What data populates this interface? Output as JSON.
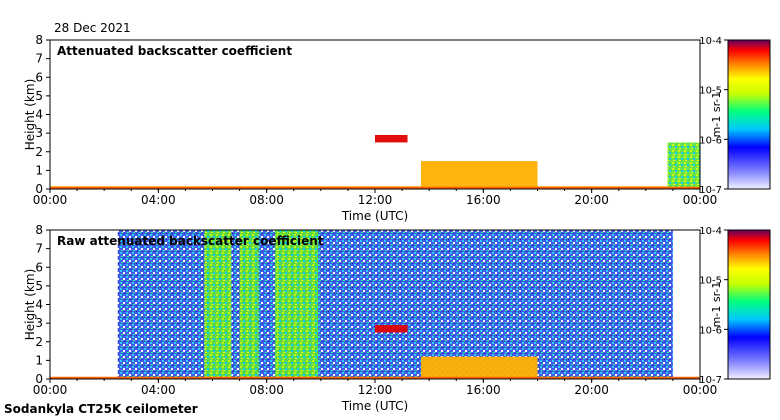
{
  "date": "28 Dec 2021",
  "footer": "Sodankyla CT25K ceilometer",
  "chart_data": [
    {
      "type": "heatmap",
      "title": "Attenuated backscatter coefficient",
      "xlabel": "Time (UTC)",
      "ylabel": "Height (km)",
      "x_ticks": [
        "00:00",
        "04:00",
        "08:00",
        "12:00",
        "16:00",
        "20:00",
        "00:00"
      ],
      "x_range_hours": [
        0,
        24
      ],
      "y_ticks": [
        0,
        1,
        2,
        3,
        4,
        5,
        6,
        7,
        8
      ],
      "ylim": [
        0,
        8
      ],
      "colorbar": {
        "scale": "log",
        "range": [
          1e-07,
          0.0001
        ],
        "ticks": [
          "10-7",
          "10-6",
          "10-5",
          "10-4"
        ],
        "unit": "m-1 sr-1"
      },
      "features": [
        {
          "name": "surface layer",
          "start_h": 0.0,
          "end_h": 24.0,
          "top_km": 0.15,
          "level": "high"
        },
        {
          "name": "cloud layer",
          "start_h": 12.0,
          "end_h": 13.2,
          "top_km": 2.9,
          "bottom_km": 2.5,
          "level": "very high"
        },
        {
          "name": "low cloud",
          "start_h": 13.7,
          "end_h": 18.0,
          "top_km": 1.5,
          "level": "high"
        },
        {
          "name": "fog layer",
          "start_h": 22.8,
          "end_h": 24.0,
          "top_km": 2.5,
          "level": "medium"
        }
      ]
    },
    {
      "type": "heatmap",
      "title": "Raw attenuated backscatter coefficient",
      "xlabel": "Time (UTC)",
      "ylabel": "Height (km)",
      "x_ticks": [
        "00:00",
        "04:00",
        "08:00",
        "12:00",
        "16:00",
        "20:00",
        "00:00"
      ],
      "x_range_hours": [
        0,
        24
      ],
      "y_ticks": [
        0,
        1,
        2,
        3,
        4,
        5,
        6,
        7,
        8
      ],
      "ylim": [
        0,
        8
      ],
      "colorbar": {
        "scale": "log",
        "range": [
          1e-07,
          0.0001
        ],
        "ticks": [
          "10-7",
          "10-6",
          "10-5",
          "10-4"
        ],
        "unit": "m-1 sr-1"
      },
      "features": [
        {
          "name": "noise background",
          "start_h": 2.5,
          "end_h": 23.0,
          "top_km": 8.0,
          "level": "low"
        },
        {
          "name": "enhanced noise band",
          "start_h": 5.7,
          "end_h": 6.7,
          "level": "medium"
        },
        {
          "name": "enhanced noise band",
          "start_h": 7.0,
          "end_h": 7.7,
          "level": "medium"
        },
        {
          "name": "enhanced noise band",
          "start_h": 8.3,
          "end_h": 9.9,
          "level": "medium"
        },
        {
          "name": "cloud layer",
          "start_h": 12.0,
          "end_h": 13.2,
          "top_km": 2.9,
          "bottom_km": 2.5,
          "level": "very high"
        },
        {
          "name": "low cloud",
          "start_h": 13.7,
          "end_h": 18.0,
          "top_km": 1.2,
          "level": "high"
        }
      ]
    }
  ]
}
